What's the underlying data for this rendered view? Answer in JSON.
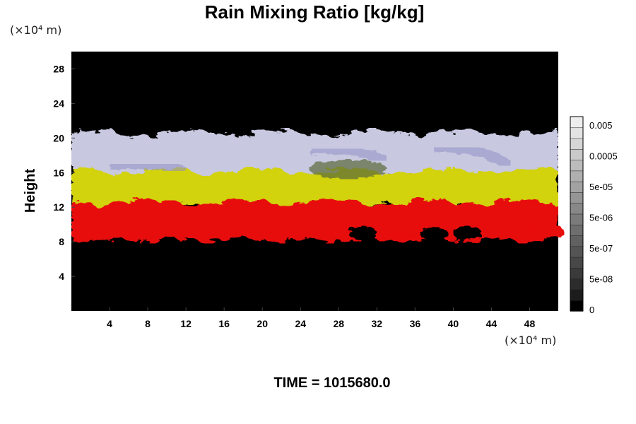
{
  "chart_data": {
    "type": "heatmap",
    "title": "Rain Mixing Ratio [kg/kg]",
    "xlabel": "",
    "ylabel": "Height",
    "x_unit": "(×10⁴ m)",
    "y_unit": "(×10⁴ m)",
    "xlim": [
      0,
      51
    ],
    "ylim": [
      0,
      30
    ],
    "x_ticks": [
      4,
      8,
      12,
      16,
      20,
      24,
      28,
      32,
      36,
      40,
      44,
      48
    ],
    "y_ticks": [
      4,
      8,
      12,
      16,
      20,
      24,
      28
    ],
    "footer": "TIME = 1015680.0",
    "colorbar": {
      "labels": [
        "0",
        "5e-08",
        "5e-07",
        "5e-06",
        "5e-05",
        "0.0005",
        "0.005"
      ],
      "colors": [
        "#000000",
        "#1c1c1c",
        "#2c2c2c",
        "#3a3a3a",
        "#474747",
        "#545454",
        "#616161",
        "#6e6e6e",
        "#7b7b7b",
        "#888888",
        "#959595",
        "#a2a2a2",
        "#afafaf",
        "#bcbcbc",
        "#c9c9c9",
        "#d6d6d6",
        "#e3e3e3",
        "#eeeeee"
      ]
    },
    "layers": [
      {
        "name": "red",
        "color": "#e81010",
        "y_bottom": 8.2,
        "y_top": 12.6
      },
      {
        "name": "yellow",
        "color": "#d2d20a",
        "y_bottom": 12.2,
        "y_top": 16.2
      },
      {
        "name": "white",
        "color": "#c8c8e0",
        "y_bottom": 15.6,
        "y_top": 20.6
      }
    ],
    "colors": {
      "background": "#000000",
      "red": "#e81010",
      "yellow": "#d2d20a",
      "white": "#d0d0e4",
      "blue": "#9090c8"
    }
  }
}
